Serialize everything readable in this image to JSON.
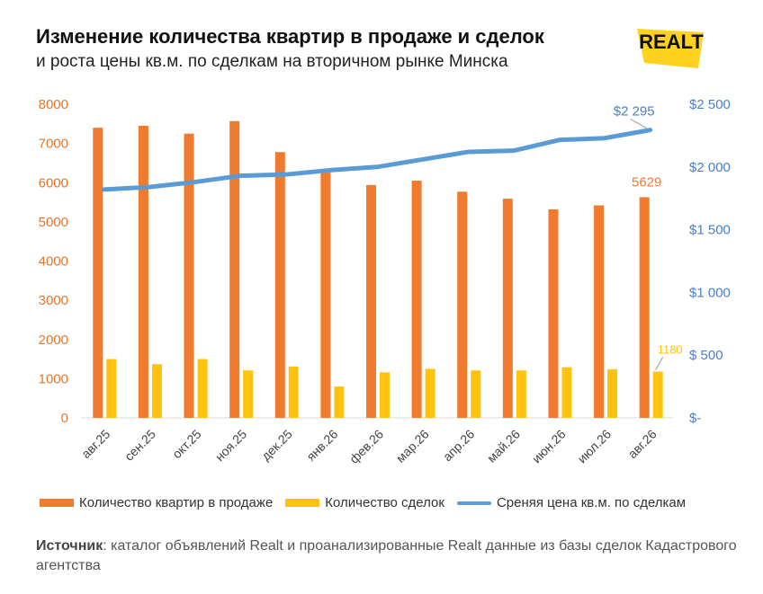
{
  "header": {
    "title": "Изменение количества квартир в продаже и сделок",
    "subtitle": "и роста цены кв.м. по сделкам на вторичном рынке Минска",
    "logo_text": "REALT"
  },
  "colors": {
    "listings": "#F07A2E",
    "deals": "#FFC20E",
    "price": "#5B9BD5",
    "left_axis": "#E0772E",
    "right_axis": "#4A7FC1",
    "logo_yellow": "#FFD21F"
  },
  "chart_data": {
    "type": "bar",
    "categories": [
      "авг.25",
      "сен.25",
      "окт.25",
      "ноя.25",
      "дек.25",
      "янв.26",
      "фев.26",
      "мар.26",
      "апр.26",
      "май.26",
      "июн.26",
      "июл.26",
      "авг.26"
    ],
    "series": [
      {
        "name": "Количество квартир в продаже",
        "type": "bar",
        "axis": "left",
        "values": [
          7400,
          7450,
          7250,
          7570,
          6780,
          6300,
          5940,
          6050,
          5770,
          5590,
          5320,
          5420,
          5629
        ]
      },
      {
        "name": "Количество сделок",
        "type": "bar",
        "axis": "left",
        "values": [
          1500,
          1370,
          1500,
          1210,
          1310,
          800,
          1160,
          1250,
          1210,
          1210,
          1290,
          1240,
          1180
        ]
      },
      {
        "name": "Среняя цена кв.м. по сделкам",
        "type": "line",
        "axis": "right",
        "values": [
          1820,
          1840,
          1880,
          1930,
          1940,
          1975,
          2000,
          2060,
          2120,
          2130,
          2215,
          2230,
          2295
        ]
      }
    ],
    "left_axis": {
      "ylim": [
        0,
        8000
      ],
      "ticks": [
        0,
        1000,
        2000,
        3000,
        4000,
        5000,
        6000,
        7000,
        8000
      ],
      "tick_labels": [
        "0",
        "1000",
        "2000",
        "3000",
        "4000",
        "5000",
        "6000",
        "7000",
        "8000"
      ]
    },
    "right_axis": {
      "ylim": [
        0,
        2500
      ],
      "ticks": [
        0,
        500,
        1000,
        1500,
        2000,
        2500
      ],
      "tick_labels": [
        "$-",
        "$ 500",
        "$1 000",
        "$1 500",
        "$2 000",
        "$2 500"
      ]
    },
    "data_labels": {
      "listings_last": "5629",
      "deals_last": "1180",
      "price_last": "$2 295"
    },
    "grid": false,
    "legend": "bottom"
  },
  "source": {
    "label": "Источник",
    "text": ": каталог объявлений Realt и проанализированные Realt данные из базы сделок Кадастрового агентства"
  }
}
